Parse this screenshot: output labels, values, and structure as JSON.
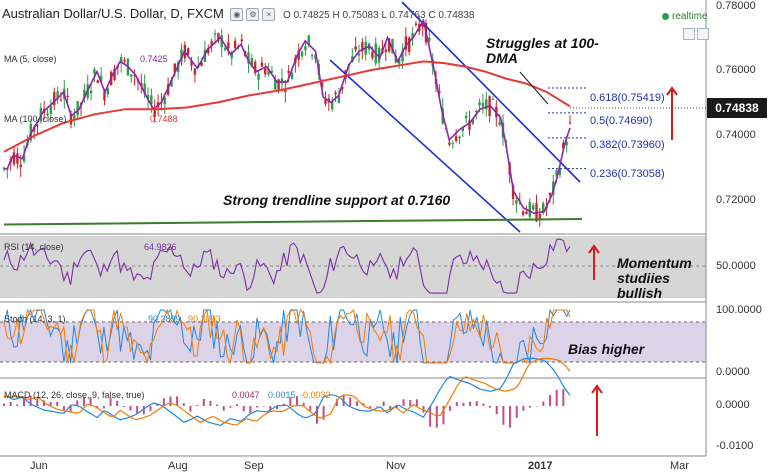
{
  "header": {
    "title": "Australian Dollar/U.S. Dollar, D, FXCM",
    "ohlc": "O 0.74825 H 0.75083 L 0.74763 C 0.74838",
    "realtime": "realtime"
  },
  "price_tag": "0.74838",
  "y_axis_price": [
    "0.78000",
    "0.76000",
    "0.74000",
    "0.72000"
  ],
  "y_axis_rsi": [
    "50.0000"
  ],
  "y_axis_stoch": [
    "100.0000",
    "0.0000"
  ],
  "y_axis_macd": [
    "0.0000",
    "-0.0100"
  ],
  "x_axis": [
    {
      "label": "Jun",
      "bold": false
    },
    {
      "label": "Aug",
      "bold": false
    },
    {
      "label": "Sep",
      "bold": false
    },
    {
      "label": "Nov",
      "bold": false
    },
    {
      "label": "2017",
      "bold": true
    },
    {
      "label": "Mar",
      "bold": false
    }
  ],
  "indicators": {
    "ma5": "MA (5, close)",
    "ma5_value": "0.7425",
    "ma100": "MA (100, close)",
    "ma100_value": "0.7488",
    "rsi": "RSI (14, close)",
    "rsi_value": "64.9826",
    "stoch": "Stoch (14, 3, 1)",
    "stoch_k": "90.2899",
    "stoch_d": "90.3093",
    "macd": "MACD (12, 26, close, 9, false, true)",
    "macd_hist": "0.0047",
    "macd_line": "0.0015",
    "macd_signal": "-0.0032"
  },
  "annotations": {
    "struggles": "Struggles at 100-DMA",
    "trendline": "Strong trendline support at 0.7160",
    "momentum": "Momentum studiies bullish",
    "bias": "Bias higher"
  },
  "fib_levels": [
    {
      "label": "0.618(0.75419)",
      "price": 0.75419
    },
    {
      "label": "0.5(0.74690)",
      "price": 0.7469
    },
    {
      "label": "0.382(0.73960)",
      "price": 0.7396
    },
    {
      "label": "0.236(0.73058)",
      "price": 0.73058
    }
  ],
  "colors": {
    "candle_up": "#2e9b4b",
    "candle_down": "#c62828",
    "ma5": "#8e24aa",
    "ma100": "#e53935",
    "channel": "#1a2fd6",
    "trendline": "#3a7d2a",
    "rsi": "#7b2fa8",
    "stoch_k": "#1e88e5",
    "stoch_d": "#f57c00",
    "macd_line": "#1e88e5",
    "macd_signal": "#f57c00",
    "macd_hist": "#b0206a",
    "arrow": "#d81b1b"
  },
  "chart_data": {
    "type": "line",
    "title": "Australian Dollar/U.S. Dollar, D, FXCM",
    "xlabel": "",
    "ylabel": "",
    "x_ticks": [
      "Jun",
      "Aug",
      "Sep",
      "Nov",
      "2017",
      "Mar"
    ],
    "ylim": [
      0.712,
      0.78
    ],
    "series": [
      {
        "name": "MA (5, close)",
        "points": [
          [
            0.724,
            0.7305
          ],
          [
            0.73,
            0.7305
          ],
          [
            0.742,
            0.7345
          ],
          [
            0.76,
            0.7335
          ],
          [
            0.775,
            0.7405
          ],
          [
            0.8,
            0.7472
          ],
          [
            0.82,
            0.75
          ],
          [
            0.84,
            0.753
          ],
          [
            0.855,
            0.746
          ],
          [
            0.87,
            0.748
          ],
          [
            0.885,
            0.753
          ],
          [
            0.905,
            0.759
          ],
          [
            0.92,
            0.753
          ],
          [
            0.935,
            0.758
          ],
          [
            0.95,
            0.762
          ],
          [
            0.965,
            0.7605
          ],
          [
            0.98,
            0.758
          ],
          [
            1.0,
            0.752
          ],
          [
            1.015,
            0.748
          ],
          [
            1.03,
            0.75
          ],
          [
            1.05,
            0.7565
          ],
          [
            1.075,
            0.765
          ],
          [
            1.1,
            0.76
          ],
          [
            1.12,
            0.7655
          ],
          [
            1.145,
            0.769
          ],
          [
            1.165,
            0.764
          ],
          [
            1.185,
            0.767
          ],
          [
            1.2,
            0.762
          ],
          [
            1.215,
            0.759
          ],
          [
            1.235,
            0.7605
          ],
          [
            1.255,
            0.756
          ],
          [
            1.275,
            0.756
          ],
          [
            1.295,
            0.764
          ],
          [
            1.31,
            0.768
          ],
          [
            1.33,
            0.765
          ],
          [
            1.345,
            0.7515
          ],
          [
            1.36,
            0.75
          ],
          [
            1.375,
            0.752
          ],
          [
            1.395,
            0.761
          ],
          [
            1.415,
            0.765
          ],
          [
            1.435,
            0.7665
          ],
          [
            1.455,
            0.763
          ],
          [
            1.47,
            0.769
          ],
          [
            1.49,
            0.762
          ],
          [
            1.505,
            0.7665
          ],
          [
            1.52,
            0.769
          ],
          [
            1.54,
            0.774
          ],
          [
            1.56,
            0.76
          ],
          [
            1.575,
            0.748
          ],
          [
            1.59,
            0.739
          ],
          [
            1.61,
            0.742
          ],
          [
            1.63,
            0.744
          ],
          [
            1.65,
            0.748
          ],
          [
            1.67,
            0.749
          ],
          [
            1.69,
            0.7455
          ],
          [
            1.7,
            0.738
          ],
          [
            1.715,
            0.724
          ],
          [
            1.735,
            0.719
          ],
          [
            1.755,
            0.7175
          ],
          [
            1.775,
            0.718
          ],
          [
            1.79,
            0.723
          ],
          [
            1.8,
            0.728
          ],
          [
            1.815,
            0.738
          ],
          [
            1.825,
            0.7425
          ]
        ]
      },
      {
        "name": "MA (100, close)",
        "points": [
          [
            0.724,
            0.7355
          ],
          [
            0.78,
            0.74
          ],
          [
            0.84,
            0.744
          ],
          [
            0.9,
            0.7465
          ],
          [
            0.96,
            0.748
          ],
          [
            1.02,
            0.748
          ],
          [
            1.08,
            0.7485
          ],
          [
            1.14,
            0.75
          ],
          [
            1.2,
            0.752
          ],
          [
            1.26,
            0.7535
          ],
          [
            1.32,
            0.7555
          ],
          [
            1.38,
            0.7575
          ],
          [
            1.44,
            0.7595
          ],
          [
            1.5,
            0.761
          ],
          [
            1.54,
            0.762
          ],
          [
            1.58,
            0.7615
          ],
          [
            1.62,
            0.7605
          ],
          [
            1.66,
            0.759
          ],
          [
            1.7,
            0.757
          ],
          [
            1.74,
            0.7555
          ],
          [
            1.78,
            0.753
          ],
          [
            1.825,
            0.7488
          ]
        ]
      }
    ],
    "x_encoding": "normalized time axis (0.724 = left edge near late May, 1.825 = latest candle, early Jan 2017)",
    "annotations": [
      "Struggles at 100-DMA",
      "Strong trendline support at 0.7160",
      "Momentum studiies bullish",
      "Bias higher"
    ],
    "fibonacci": {
      "0.618": 0.75419,
      "0.5": 0.7469,
      "0.382": 0.7396,
      "0.236": 0.73058
    },
    "trendline_support": 0.716,
    "last_close": 0.74838,
    "rsi": {
      "name": "RSI (14, close)",
      "last": 64.9826,
      "ylim": [
        25,
        75
      ]
    },
    "stochastic": {
      "name": "Stoch (14, 3, 1)",
      "k": 90.2899,
      "d": 90.3093,
      "ylim": [
        0,
        100
      ]
    },
    "macd": {
      "name": "MACD (12, 26, close, 9, false, true)",
      "hist": 0.0047,
      "macd": 0.0015,
      "signal": -0.0032,
      "ylim": [
        -0.01,
        0.005
      ]
    },
    "grid": false,
    "legend": "top-left"
  }
}
